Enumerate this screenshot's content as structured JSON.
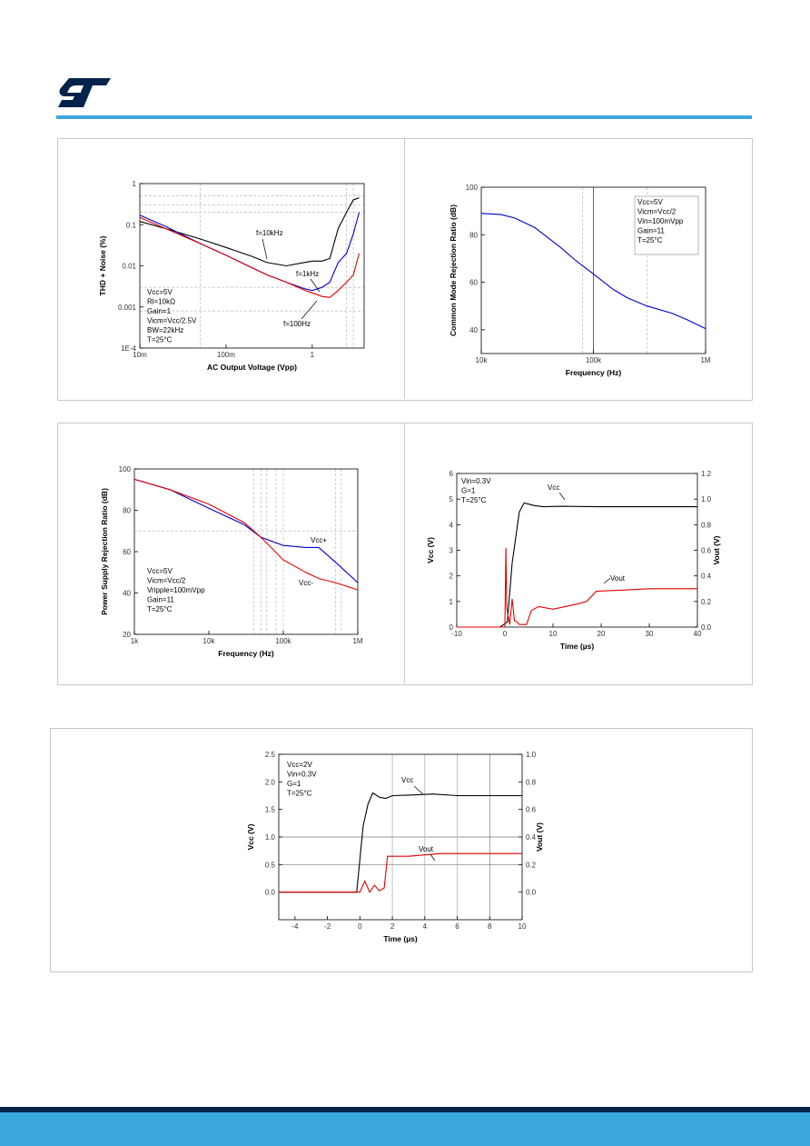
{
  "header": {
    "brand": "ST"
  },
  "colors": {
    "accent": "#3aa8dc",
    "footer_dark": "#03234b",
    "series_black": "#000000",
    "series_red": "#e00000",
    "series_blue": "#0000cc"
  },
  "charts": [
    {
      "id": "thd",
      "chart_data": {
        "type": "line",
        "xlabel": "AC Output Voltage (Vpp)",
        "ylabel": "THD + Noise (%)",
        "xscale": "log",
        "yscale": "log",
        "xlim": [
          0.01,
          4
        ],
        "ylim": [
          0.0001,
          1
        ],
        "x_ticks": [
          "10m",
          "100m",
          "1"
        ],
        "y_ticks": [
          "1",
          "0.1",
          "0.01",
          "0.001",
          "1E-4"
        ],
        "conditions": [
          "Vcc=5V",
          "Rl=10kΩ",
          "Gain=1",
          "Vicm=Vcc/2.5V",
          "BW=22kHz",
          "T=25°C"
        ],
        "annotations": [
          "f=10kHz",
          "f=1kHz",
          "f=100Hz"
        ],
        "series": [
          {
            "name": "f=10kHz",
            "color": "black",
            "x": [
              0.01,
              0.02,
              0.05,
              0.1,
              0.2,
              0.3,
              0.5,
              0.8,
              1.0,
              1.3,
              1.6,
              2.0,
              2.5,
              3.0,
              3.5
            ],
            "y": [
              0.12,
              0.08,
              0.045,
              0.028,
              0.017,
              0.012,
              0.01,
              0.012,
              0.013,
              0.013,
              0.015,
              0.08,
              0.2,
              0.4,
              0.45
            ]
          },
          {
            "name": "f=1kHz",
            "color": "blue",
            "x": [
              0.01,
              0.02,
              0.05,
              0.1,
              0.2,
              0.3,
              0.5,
              0.8,
              1.0,
              1.3,
              1.6,
              2.0,
              2.5,
              3.0,
              3.5
            ],
            "y": [
              0.17,
              0.09,
              0.035,
              0.018,
              0.009,
              0.006,
              0.004,
              0.0028,
              0.0025,
              0.003,
              0.004,
              0.012,
              0.02,
              0.06,
              0.2
            ]
          },
          {
            "name": "f=100Hz",
            "color": "red",
            "x": [
              0.01,
              0.02,
              0.05,
              0.1,
              0.2,
              0.3,
              0.5,
              0.8,
              1.0,
              1.3,
              1.6,
              2.0,
              2.5,
              3.0,
              3.5
            ],
            "y": [
              0.15,
              0.08,
              0.035,
              0.018,
              0.009,
              0.006,
              0.004,
              0.0026,
              0.0022,
              0.0018,
              0.0017,
              0.0025,
              0.004,
              0.006,
              0.02
            ]
          }
        ]
      }
    },
    {
      "id": "cmrr",
      "chart_data": {
        "type": "line",
        "xlabel": "Frequency (Hz)",
        "ylabel": "Common Mode Rejection Ratio (dB)",
        "xscale": "log",
        "xlim": [
          10000,
          1000000
        ],
        "ylim": [
          30,
          100
        ],
        "x_ticks": [
          "10k",
          "100k",
          "1M"
        ],
        "y_ticks": [
          "100",
          "80",
          "60",
          "40"
        ],
        "conditions": [
          "Vcc=5V",
          "Vicm=Vcc/2",
          "Vin=100mVpp",
          "Gain=11",
          "T=25°C"
        ],
        "series": [
          {
            "name": "CMRR",
            "color": "blue",
            "x": [
              10000,
              15000,
              20000,
              30000,
              50000,
              70000,
              100000,
              150000,
              200000,
              300000,
              500000,
              700000,
              1000000
            ],
            "y": [
              89,
              88.5,
              87,
              83,
              75,
              69,
              63.5,
              57,
              53.5,
              50,
              47,
              44,
              40.5
            ]
          }
        ]
      }
    },
    {
      "id": "psrr",
      "chart_data": {
        "type": "line",
        "xlabel": "Frequency (Hz)",
        "ylabel": "Power Supply Rejection Ratio (dB)",
        "xscale": "log",
        "xlim": [
          1000,
          1000000
        ],
        "ylim": [
          20,
          100
        ],
        "x_ticks": [
          "1k",
          "10k",
          "100k",
          "1M"
        ],
        "y_ticks": [
          "100",
          "80",
          "60",
          "40",
          "20"
        ],
        "conditions": [
          "Vcc=5V",
          "Vicm=Vcc/2",
          "Vripple=100mVpp",
          "Gain=11",
          "T=25°C"
        ],
        "annotations": [
          "Vcc+",
          "Vcc-"
        ],
        "series": [
          {
            "name": "Vcc+",
            "color": "blue",
            "x": [
              1000,
              3000,
              10000,
              30000,
              50000,
              100000,
              200000,
              300000,
              500000,
              1000000
            ],
            "y": [
              95,
              90,
              81,
              73,
              67,
              63,
              62,
              62,
              55,
              45
            ]
          },
          {
            "name": "Vcc-",
            "color": "red",
            "x": [
              1000,
              3000,
              10000,
              30000,
              50000,
              100000,
              200000,
              300000,
              500000,
              1000000
            ],
            "y": [
              95,
              90,
              83,
              74,
              67,
              56,
              50,
              47,
              45,
              41.5
            ]
          }
        ]
      }
    },
    {
      "id": "startup1",
      "chart_data": {
        "type": "line",
        "xlabel": "Time (µs)",
        "ylabel": "Vcc (V)",
        "ylabel_right": "Vout (V)",
        "xlim": [
          -10,
          40
        ],
        "ylim": [
          0,
          6
        ],
        "ylim_right": [
          0,
          1.2
        ],
        "x_ticks": [
          "-10",
          "0",
          "10",
          "20",
          "30",
          "40"
        ],
        "y_ticks": [
          "6",
          "5",
          "4",
          "3",
          "2",
          "1",
          "0"
        ],
        "y_ticks_right": [
          "1.2",
          "1.0",
          "0.8",
          "0.6",
          "0.4",
          "0.2",
          "0.0"
        ],
        "conditions": [
          "Vin=0.3V",
          "G=1",
          "T=25°C"
        ],
        "annotations": [
          "Vcc",
          "Vout"
        ],
        "series": [
          {
            "name": "Vcc",
            "color": "black",
            "axis": "left",
            "x": [
              -10,
              -1,
              0.5,
              1.5,
              3,
              4,
              5,
              6,
              8,
              12,
              20,
              30,
              40
            ],
            "y": [
              0,
              0,
              0.2,
              2.5,
              4.5,
              4.85,
              4.8,
              4.75,
              4.7,
              4.72,
              4.7,
              4.7,
              4.7
            ]
          },
          {
            "name": "Vout",
            "color": "red",
            "axis": "right",
            "x": [
              -10,
              0,
              0.2,
              0.4,
              1,
              1.5,
              2,
              2.5,
              3,
              4.5,
              5.5,
              7,
              10,
              15,
              17,
              19,
              25,
              30,
              40
            ],
            "y": [
              0,
              0,
              0.62,
              0.15,
              0.02,
              0.22,
              0.05,
              0.04,
              0.02,
              0.02,
              0.13,
              0.16,
              0.14,
              0.18,
              0.2,
              0.28,
              0.29,
              0.3,
              0.3
            ]
          }
        ]
      }
    },
    {
      "id": "startup2",
      "chart_data": {
        "type": "line",
        "xlabel": "Time (µs)",
        "ylabel": "Vcc (V)",
        "ylabel_right": "Vout (V)",
        "xlim": [
          -5,
          10
        ],
        "ylim": [
          -0.5,
          2.5
        ],
        "ylim_right": [
          -0.2,
          1.0
        ],
        "x_ticks": [
          "-4",
          "-2",
          "0",
          "2",
          "4",
          "6",
          "8",
          "10"
        ],
        "y_ticks": [
          "2.5",
          "2.0",
          "1.5",
          "1.0",
          "0.5",
          "0.0"
        ],
        "y_ticks_right": [
          "1.0",
          "0.8",
          "0.6",
          "0.4",
          "0.2",
          "0.0"
        ],
        "conditions": [
          "Vcc=2V",
          "Vin=0.3V",
          "G=1",
          "T=25°C"
        ],
        "annotations": [
          "Vcc",
          "Vout"
        ],
        "series": [
          {
            "name": "Vcc",
            "color": "black",
            "axis": "left",
            "x": [
              -5,
              -0.2,
              0.2,
              0.5,
              0.8,
              1.2,
              1.6,
              2,
              3,
              4.5,
              6,
              8,
              10
            ],
            "y": [
              0,
              0,
              1.2,
              1.6,
              1.8,
              1.72,
              1.7,
              1.75,
              1.76,
              1.78,
              1.75,
              1.75,
              1.75
            ]
          },
          {
            "name": "Vout",
            "color": "red",
            "axis": "right",
            "x": [
              -5,
              0,
              0.3,
              0.6,
              0.9,
              1.2,
              1.5,
              1.7,
              2,
              3,
              4,
              5,
              6,
              8,
              10
            ],
            "y": [
              0,
              0,
              0.08,
              0,
              0.05,
              0.01,
              0.03,
              0.26,
              0.26,
              0.26,
              0.27,
              0.28,
              0.28,
              0.28,
              0.28
            ]
          }
        ]
      }
    }
  ]
}
